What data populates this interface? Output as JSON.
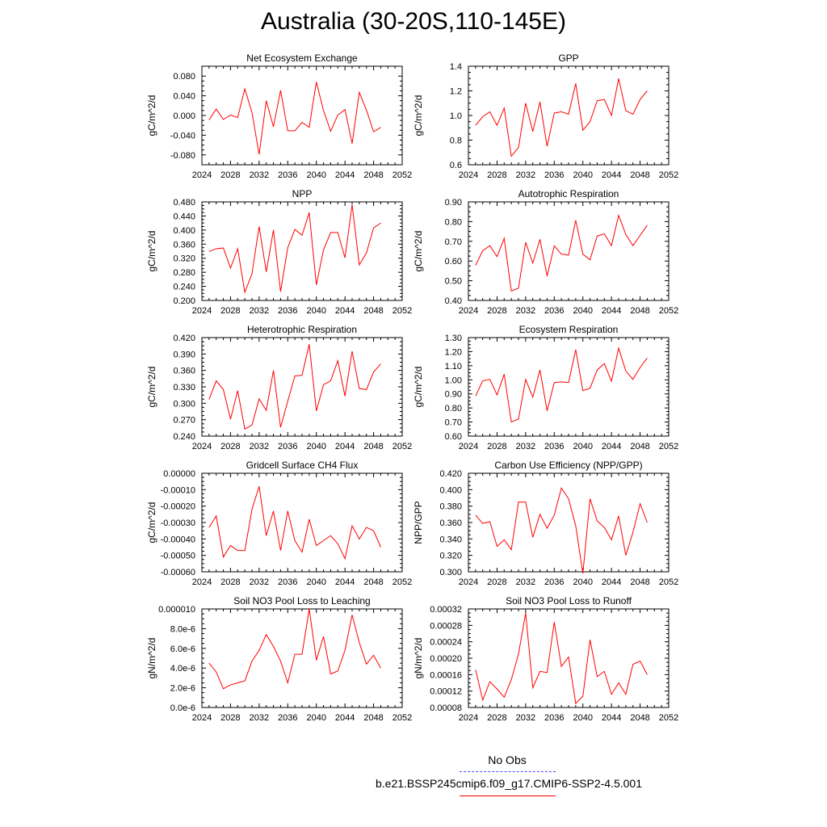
{
  "page": {
    "title": "Australia (30-20S,110-145E)",
    "legend": [
      {
        "label": "No Obs",
        "color": "#4d4df0",
        "style": "dashed"
      },
      {
        "label": "b.e21.BSSP245cmip6.f09_g17.CMIP6-SSP2-4.5.001",
        "color": "#ff0000",
        "style": "solid"
      }
    ]
  },
  "chart_data": [
    {
      "type": "line",
      "title": "Net Ecosystem Exchange",
      "ylabel": "gC/m^2/d",
      "xlim": [
        2024,
        2052
      ],
      "ylim": [
        -0.1,
        0.1
      ],
      "xticks": [
        2024,
        2028,
        2032,
        2036,
        2040,
        2044,
        2048,
        2052
      ],
      "xtick_labels": [
        "2024",
        "2028",
        "2032",
        "2036",
        "2040",
        "2044",
        "2048",
        "2052"
      ],
      "yticks": [
        -0.08,
        -0.04,
        0.0,
        0.04,
        0.08
      ],
      "ytick_labels": [
        "-0.080",
        "-0.040",
        "0.000",
        "0.040",
        "0.080"
      ],
      "series": [
        {
          "color": "#ff0000",
          "x": [
            2025,
            2026,
            2027,
            2028,
            2029,
            2030,
            2031,
            2032,
            2033,
            2034,
            2035,
            2036,
            2037,
            2038,
            2039,
            2040,
            2041,
            2042,
            2043,
            2044,
            2045,
            2046,
            2047,
            2048,
            2049
          ],
          "y": [
            -0.009,
            0.013,
            -0.008,
            0.001,
            -0.004,
            0.054,
            0.006,
            -0.079,
            0.03,
            -0.023,
            0.051,
            -0.031,
            -0.031,
            -0.014,
            -0.024,
            0.068,
            0.01,
            -0.032,
            0.001,
            0.012,
            -0.057,
            0.047,
            0.011,
            -0.033,
            -0.024
          ]
        }
      ]
    },
    {
      "type": "line",
      "title": "GPP",
      "ylabel": "gC/m^2/d",
      "xlim": [
        2024,
        2052
      ],
      "ylim": [
        0.6,
        1.4
      ],
      "xticks": [
        2024,
        2028,
        2032,
        2036,
        2040,
        2044,
        2048,
        2052
      ],
      "xtick_labels": [
        "2024",
        "2028",
        "2032",
        "2036",
        "2040",
        "2044",
        "2048",
        "2052"
      ],
      "yticks": [
        0.6,
        0.8,
        1.0,
        1.2,
        1.4
      ],
      "ytick_labels": [
        "0.6",
        "0.8",
        "1.0",
        "1.2",
        "1.4"
      ],
      "series": [
        {
          "color": "#ff0000",
          "x": [
            2025,
            2026,
            2027,
            2028,
            2029,
            2030,
            2031,
            2032,
            2033,
            2034,
            2035,
            2036,
            2037,
            2038,
            2039,
            2040,
            2041,
            2042,
            2043,
            2044,
            2045,
            2046,
            2047,
            2048,
            2049
          ],
          "y": [
            0.92,
            0.99,
            1.03,
            0.92,
            1.06,
            0.67,
            0.74,
            1.1,
            0.87,
            1.11,
            0.75,
            1.02,
            1.03,
            1.01,
            1.26,
            0.88,
            0.95,
            1.12,
            1.13,
            1.0,
            1.3,
            1.04,
            1.01,
            1.13,
            1.2
          ]
        }
      ]
    },
    {
      "type": "line",
      "title": "NPP",
      "ylabel": "gC/m^2/d",
      "xlim": [
        2024,
        2052
      ],
      "ylim": [
        0.2,
        0.48
      ],
      "xticks": [
        2024,
        2028,
        2032,
        2036,
        2040,
        2044,
        2048,
        2052
      ],
      "xtick_labels": [
        "2024",
        "2028",
        "2032",
        "2036",
        "2040",
        "2044",
        "2048",
        "2052"
      ],
      "yticks": [
        0.2,
        0.24,
        0.28,
        0.32,
        0.36,
        0.4,
        0.44,
        0.48
      ],
      "ytick_labels": [
        "0.200",
        "0.240",
        "0.280",
        "0.320",
        "0.360",
        "0.400",
        "0.440",
        "0.480"
      ],
      "series": [
        {
          "color": "#ff0000",
          "x": [
            2025,
            2026,
            2027,
            2028,
            2029,
            2030,
            2031,
            2032,
            2033,
            2034,
            2035,
            2036,
            2037,
            2038,
            2039,
            2040,
            2041,
            2042,
            2043,
            2044,
            2045,
            2046,
            2047,
            2048,
            2049
          ],
          "y": [
            0.339,
            0.347,
            0.349,
            0.292,
            0.347,
            0.223,
            0.276,
            0.41,
            0.281,
            0.4,
            0.225,
            0.35,
            0.402,
            0.385,
            0.45,
            0.244,
            0.344,
            0.393,
            0.393,
            0.321,
            0.472,
            0.301,
            0.335,
            0.406,
            0.42
          ]
        }
      ]
    },
    {
      "type": "line",
      "title": "Autotrophic Respiration",
      "ylabel": "gC/m^2/d",
      "xlim": [
        2024,
        2052
      ],
      "ylim": [
        0.4,
        0.9
      ],
      "xticks": [
        2024,
        2028,
        2032,
        2036,
        2040,
        2044,
        2048,
        2052
      ],
      "xtick_labels": [
        "2024",
        "2028",
        "2032",
        "2036",
        "2040",
        "2044",
        "2048",
        "2052"
      ],
      "yticks": [
        0.4,
        0.5,
        0.6,
        0.7,
        0.8,
        0.9
      ],
      "ytick_labels": [
        "0.40",
        "0.50",
        "0.60",
        "0.70",
        "0.80",
        "0.90"
      ],
      "series": [
        {
          "color": "#ff0000",
          "x": [
            2025,
            2026,
            2027,
            2028,
            2029,
            2030,
            2031,
            2032,
            2033,
            2034,
            2035,
            2036,
            2037,
            2038,
            2039,
            2040,
            2041,
            2042,
            2043,
            2044,
            2045,
            2046,
            2047,
            2048,
            2049
          ],
          "y": [
            0.578,
            0.652,
            0.678,
            0.622,
            0.715,
            0.448,
            0.462,
            0.695,
            0.59,
            0.71,
            0.524,
            0.677,
            0.635,
            0.63,
            0.807,
            0.635,
            0.606,
            0.727,
            0.738,
            0.678,
            0.832,
            0.735,
            0.678,
            0.73,
            0.782
          ]
        }
      ]
    },
    {
      "type": "line",
      "title": "Heterotrophic Respiration",
      "ylabel": "gC/m^2/d",
      "xlim": [
        2024,
        2052
      ],
      "ylim": [
        0.24,
        0.42
      ],
      "xticks": [
        2024,
        2028,
        2032,
        2036,
        2040,
        2044,
        2048,
        2052
      ],
      "xtick_labels": [
        "2024",
        "2028",
        "2032",
        "2036",
        "2040",
        "2044",
        "2048",
        "2052"
      ],
      "yticks": [
        0.24,
        0.27,
        0.3,
        0.33,
        0.36,
        0.39,
        0.42
      ],
      "ytick_labels": [
        "0.240",
        "0.270",
        "0.300",
        "0.330",
        "0.360",
        "0.390",
        "0.420"
      ],
      "series": [
        {
          "color": "#ff0000",
          "x": [
            2025,
            2026,
            2027,
            2028,
            2029,
            2030,
            2031,
            2032,
            2033,
            2034,
            2035,
            2036,
            2037,
            2038,
            2039,
            2040,
            2041,
            2042,
            2043,
            2044,
            2045,
            2046,
            2047,
            2048,
            2049
          ],
          "y": [
            0.307,
            0.341,
            0.325,
            0.271,
            0.323,
            0.253,
            0.26,
            0.308,
            0.287,
            0.36,
            0.256,
            0.304,
            0.35,
            0.351,
            0.408,
            0.286,
            0.334,
            0.341,
            0.378,
            0.313,
            0.395,
            0.327,
            0.325,
            0.357,
            0.372
          ]
        }
      ]
    },
    {
      "type": "line",
      "title": "Ecosystem Respiration",
      "ylabel": "gC/m^2/d",
      "xlim": [
        2024,
        2052
      ],
      "ylim": [
        0.6,
        1.3
      ],
      "xticks": [
        2024,
        2028,
        2032,
        2036,
        2040,
        2044,
        2048,
        2052
      ],
      "xtick_labels": [
        "2024",
        "2028",
        "2032",
        "2036",
        "2040",
        "2044",
        "2048",
        "2052"
      ],
      "yticks": [
        0.6,
        0.7,
        0.8,
        0.9,
        1.0,
        1.1,
        1.2,
        1.3
      ],
      "ytick_labels": [
        "0.60",
        "0.70",
        "0.80",
        "0.90",
        "1.00",
        "1.10",
        "1.20",
        "1.30"
      ],
      "series": [
        {
          "color": "#ff0000",
          "x": [
            2025,
            2026,
            2027,
            2028,
            2029,
            2030,
            2031,
            2032,
            2033,
            2034,
            2035,
            2036,
            2037,
            2038,
            2039,
            2040,
            2041,
            2042,
            2043,
            2044,
            2045,
            2046,
            2047,
            2048,
            2049
          ],
          "y": [
            0.885,
            0.993,
            1.003,
            0.893,
            1.04,
            0.7,
            0.722,
            1.003,
            0.877,
            1.07,
            0.78,
            0.98,
            0.985,
            0.98,
            1.215,
            0.923,
            0.94,
            1.07,
            1.115,
            0.99,
            1.225,
            1.063,
            1.003,
            1.087,
            1.155
          ]
        }
      ]
    },
    {
      "type": "line",
      "title": "Gridcell Surface CH4 Flux",
      "ylabel": "gC/m^2/d",
      "xlim": [
        2024,
        2052
      ],
      "ylim": [
        -0.0006,
        0.0
      ],
      "xticks": [
        2024,
        2028,
        2032,
        2036,
        2040,
        2044,
        2048,
        2052
      ],
      "xtick_labels": [
        "2024",
        "2028",
        "2032",
        "2036",
        "2040",
        "2044",
        "2048",
        "2052"
      ],
      "yticks": [
        -0.0006,
        -0.0005,
        -0.0004,
        -0.0003,
        -0.0002,
        -0.0001,
        0.0
      ],
      "ytick_labels": [
        "-0.00060",
        "-0.00050",
        "-0.00040",
        "-0.00030",
        "-0.00020",
        "-0.00010",
        "0.00000"
      ],
      "series": [
        {
          "color": "#ff0000",
          "x": [
            2025,
            2026,
            2027,
            2028,
            2029,
            2030,
            2031,
            2032,
            2033,
            2034,
            2035,
            2036,
            2037,
            2038,
            2039,
            2040,
            2041,
            2042,
            2043,
            2044,
            2045,
            2046,
            2047,
            2048,
            2049
          ],
          "y": [
            -0.00033,
            -0.00026,
            -0.00051,
            -0.00044,
            -0.00047,
            -0.00047,
            -0.00022,
            -8e-05,
            -0.00038,
            -0.00023,
            -0.00047,
            -0.00023,
            -0.00041,
            -0.00048,
            -0.00028,
            -0.00044,
            -0.00041,
            -0.00038,
            -0.00043,
            -0.00052,
            -0.00032,
            -0.0004,
            -0.00033,
            -0.00035,
            -0.00045
          ]
        }
      ]
    },
    {
      "type": "line",
      "title": "Carbon Use Efficiency (NPP/GPP)",
      "ylabel": "NPP/GPP",
      "xlim": [
        2024,
        2052
      ],
      "ylim": [
        0.3,
        0.42
      ],
      "xticks": [
        2024,
        2028,
        2032,
        2036,
        2040,
        2044,
        2048,
        2052
      ],
      "xtick_labels": [
        "2024",
        "2028",
        "2032",
        "2036",
        "2040",
        "2044",
        "2048",
        "2052"
      ],
      "yticks": [
        0.3,
        0.32,
        0.34,
        0.36,
        0.38,
        0.4,
        0.42
      ],
      "ytick_labels": [
        "0.300",
        "0.320",
        "0.340",
        "0.360",
        "0.380",
        "0.400",
        "0.420"
      ],
      "series": [
        {
          "color": "#ff0000",
          "x": [
            2025,
            2026,
            2027,
            2028,
            2029,
            2030,
            2031,
            2032,
            2033,
            2034,
            2035,
            2036,
            2037,
            2038,
            2039,
            2040,
            2041,
            2042,
            2043,
            2044,
            2045,
            2046,
            2047,
            2048,
            2049
          ],
          "y": [
            0.369,
            0.359,
            0.361,
            0.331,
            0.339,
            0.327,
            0.385,
            0.385,
            0.342,
            0.37,
            0.353,
            0.369,
            0.402,
            0.389,
            0.356,
            0.298,
            0.389,
            0.362,
            0.354,
            0.339,
            0.368,
            0.32,
            0.348,
            0.383,
            0.36
          ]
        }
      ]
    },
    {
      "type": "line",
      "title": "Soil NO3 Pool Loss to Leaching",
      "ylabel": "gN/m^2/d",
      "xlim": [
        2024,
        2052
      ],
      "ylim": [
        0.0,
        1e-05
      ],
      "xticks": [
        2024,
        2028,
        2032,
        2036,
        2040,
        2044,
        2048,
        2052
      ],
      "xtick_labels": [
        "2024",
        "2028",
        "2032",
        "2036",
        "2040",
        "2044",
        "2048",
        "2052"
      ],
      "yticks": [
        0.0,
        2e-06,
        4e-06,
        6e-06,
        8e-06,
        1e-05
      ],
      "ytick_labels": [
        "0.0e-6",
        "2.0e-6",
        "4.0e-6",
        "6.0e-6",
        "8.0e-6",
        "0.000010"
      ],
      "series": [
        {
          "color": "#ff0000",
          "x": [
            2025,
            2026,
            2027,
            2028,
            2029,
            2030,
            2031,
            2032,
            2033,
            2034,
            2035,
            2036,
            2037,
            2038,
            2039,
            2040,
            2041,
            2042,
            2043,
            2044,
            2045,
            2046,
            2047,
            2048,
            2049
          ],
          "y": [
            4.5e-06,
            3.6e-06,
            1.9e-06,
            2.3e-06,
            2.5e-06,
            2.7e-06,
            4.7e-06,
            5.8e-06,
            7.4e-06,
            6.2e-06,
            4.7e-06,
            2.5e-06,
            5.4e-06,
            5.4e-06,
            1e-05,
            4.8e-06,
            7.2e-06,
            3.4e-06,
            3.7e-06,
            5.8e-06,
            9.4e-06,
            6.6e-06,
            4.4e-06,
            5.3e-06,
            4e-06
          ]
        }
      ]
    },
    {
      "type": "line",
      "title": "Soil NO3 Pool Loss to Runoff",
      "ylabel": "gN/m^2/d",
      "xlim": [
        2024,
        2052
      ],
      "ylim": [
        8e-05,
        0.00032
      ],
      "xticks": [
        2024,
        2028,
        2032,
        2036,
        2040,
        2044,
        2048,
        2052
      ],
      "xtick_labels": [
        "2024",
        "2028",
        "2032",
        "2036",
        "2040",
        "2044",
        "2048",
        "2052"
      ],
      "yticks": [
        8e-05,
        0.00012,
        0.00016,
        0.0002,
        0.00024,
        0.00028,
        0.00032
      ],
      "ytick_labels": [
        "0.00008",
        "0.00012",
        "0.00016",
        "0.00020",
        "0.00024",
        "0.00028",
        "0.00032"
      ],
      "series": [
        {
          "color": "#ff0000",
          "x": [
            2025,
            2026,
            2027,
            2028,
            2029,
            2030,
            2031,
            2032,
            2033,
            2034,
            2035,
            2036,
            2037,
            2038,
            2039,
            2040,
            2041,
            2042,
            2043,
            2044,
            2045,
            2046,
            2047,
            2048,
            2049
          ],
          "y": [
            0.000172,
            9.8e-05,
            0.000143,
            0.000125,
            0.000105,
            0.000148,
            0.00021,
            0.00031,
            0.000128,
            0.000168,
            0.000165,
            0.000288,
            0.00018,
            0.000203,
            9e-05,
            0.000107,
            0.000245,
            0.000155,
            0.000168,
            0.000112,
            0.00014,
            0.000112,
            0.000185,
            0.000193,
            0.00016
          ]
        }
      ]
    }
  ]
}
